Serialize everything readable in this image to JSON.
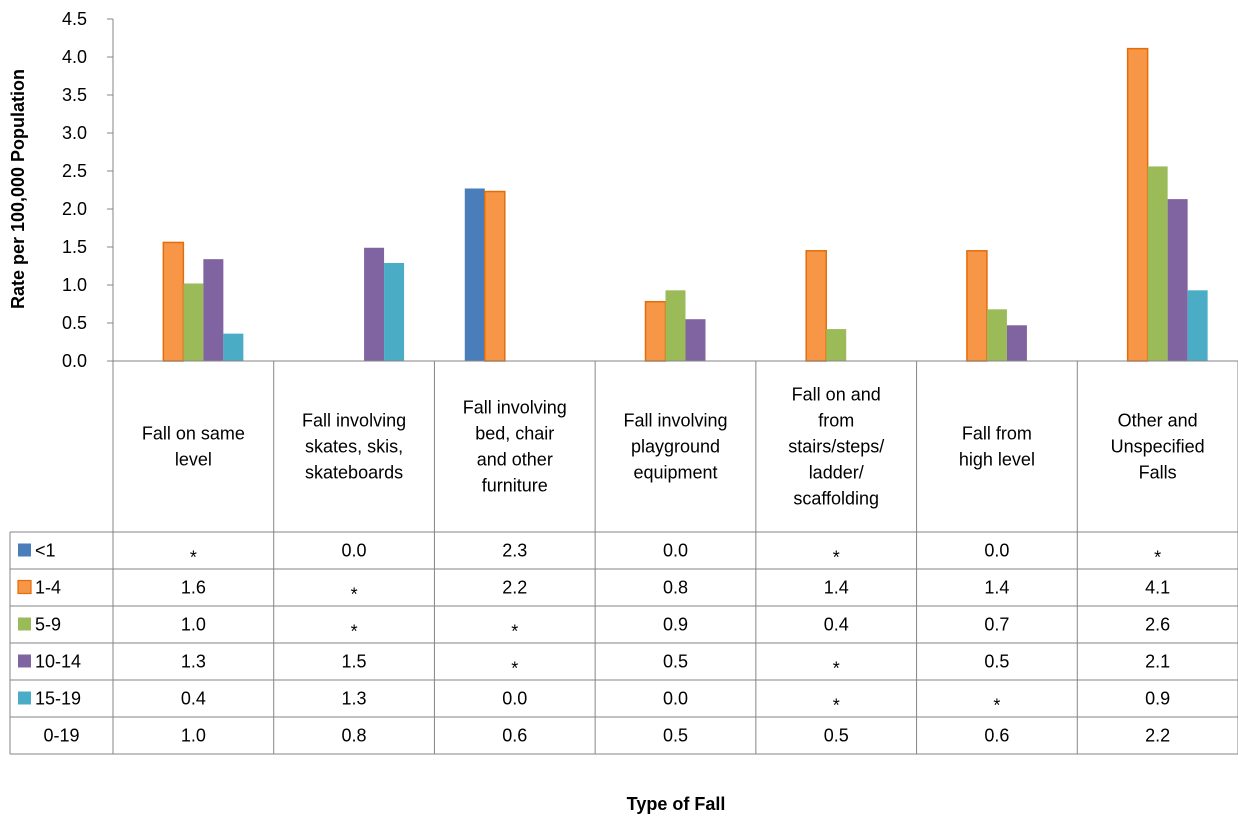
{
  "chart_data": {
    "type": "bar",
    "title": "",
    "xlabel": "Type of Fall",
    "ylabel": "Rate per 100,000 Population",
    "ylim": [
      0,
      4.5
    ],
    "yticks": [
      "0.0",
      "0.5",
      "1.0",
      "1.5",
      "2.0",
      "2.5",
      "3.0",
      "3.5",
      "4.0",
      "4.5"
    ],
    "grid": false,
    "legend_placement": "data-table",
    "categories": [
      [
        "Fall on same",
        "level"
      ],
      [
        "Fall involving",
        "skates, skis,",
        "skateboards"
      ],
      [
        "Fall involving",
        "bed, chair",
        "and other",
        "furniture"
      ],
      [
        "Fall involving",
        "playground",
        "equipment"
      ],
      [
        "Fall on and",
        "from",
        "stairs/steps/",
        "ladder/",
        "scaffolding"
      ],
      [
        "Fall from",
        "high level"
      ],
      [
        "Other and",
        "Unspecified",
        "Falls"
      ]
    ],
    "series": [
      {
        "name": "<1",
        "color": "#4a7ebb",
        "plotted": true,
        "values": [
          null,
          0.0,
          2.27,
          0.0,
          null,
          0.0,
          null
        ],
        "labels": [
          "*",
          "0.0",
          "2.3",
          "0.0",
          "*",
          "0.0",
          "*"
        ]
      },
      {
        "name": "1-4",
        "color": "#f79646",
        "plotted": true,
        "values": [
          1.56,
          null,
          2.23,
          0.78,
          1.45,
          1.45,
          4.11
        ],
        "labels": [
          "1.6",
          "*",
          "2.2",
          "0.8",
          "1.4",
          "1.4",
          "4.1"
        ]
      },
      {
        "name": "5-9",
        "color": "#9bbb59",
        "plotted": true,
        "values": [
          1.02,
          null,
          null,
          0.93,
          0.42,
          0.68,
          2.56
        ],
        "labels": [
          "1.0",
          "*",
          "*",
          "0.9",
          "0.4",
          "0.7",
          "2.6"
        ]
      },
      {
        "name": "10-14",
        "color": "#8064a2",
        "plotted": true,
        "values": [
          1.34,
          1.49,
          null,
          0.55,
          null,
          0.47,
          2.13
        ],
        "labels": [
          "1.3",
          "1.5",
          "*",
          "0.5",
          "*",
          "0.5",
          "2.1"
        ]
      },
      {
        "name": "15-19",
        "color": "#4bacc6",
        "plotted": true,
        "values": [
          0.36,
          1.29,
          0.0,
          0.0,
          null,
          null,
          0.93
        ],
        "labels": [
          "0.4",
          "1.3",
          "0.0",
          "0.0",
          "*",
          "*",
          "0.9"
        ]
      },
      {
        "name": "0-19",
        "color": "",
        "plotted": false,
        "values": [
          1.0,
          0.8,
          0.6,
          0.5,
          0.5,
          0.6,
          2.2
        ],
        "labels": [
          "1.0",
          "0.8",
          "0.6",
          "0.5",
          "0.5",
          "0.6",
          "2.2"
        ]
      }
    ]
  }
}
